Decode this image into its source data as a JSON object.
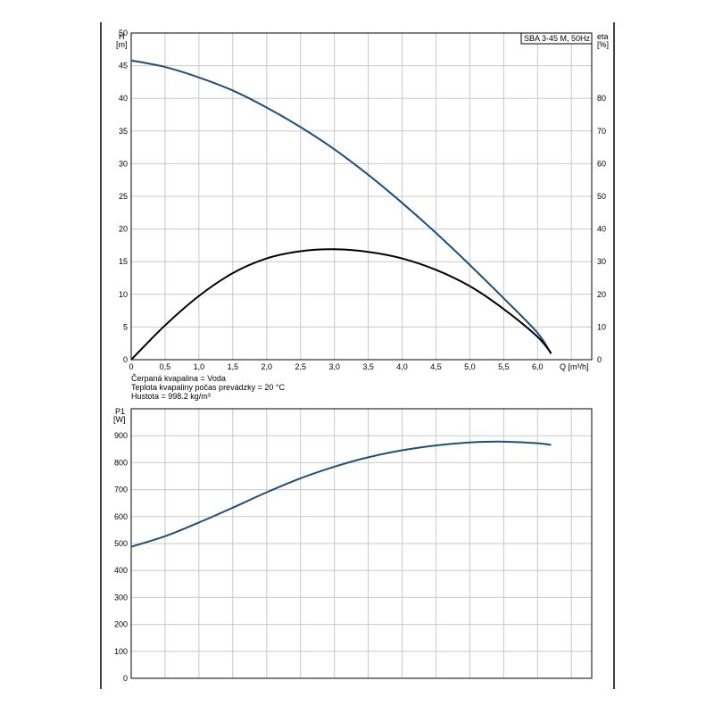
{
  "chart_data": [
    {
      "type": "line",
      "title": "SBA 3-45 M, 50Hz",
      "xlabel": "Q [m³/h]",
      "ylabel_left_name": "H",
      "ylabel_left_unit": "[m]",
      "ylabel_right_name": "eta",
      "ylabel_right_unit": "[%]",
      "xlim": [
        0,
        6.8
      ],
      "ylim": [
        0,
        50
      ],
      "ylim_right": [
        0,
        100
      ],
      "x_ticks": [
        "0",
        "0,5",
        "1,0",
        "1,5",
        "2,0",
        "2,5",
        "3,0",
        "3,5",
        "4,0",
        "4,5",
        "5,0",
        "5,5",
        "6,0"
      ],
      "y_ticks": [
        "0",
        "5",
        "10",
        "15",
        "20",
        "25",
        "30",
        "35",
        "40",
        "45",
        "50"
      ],
      "y_ticks_right": [
        "0",
        "10",
        "20",
        "30",
        "40",
        "50",
        "60",
        "70",
        "80"
      ],
      "grid": true,
      "series": [
        {
          "axis": "left",
          "color": "#1f4e79",
          "x": [
            0,
            0.5,
            1.0,
            1.5,
            2.0,
            2.5,
            3.0,
            3.5,
            4.0,
            4.5,
            5.0,
            5.5,
            6.0,
            6.2
          ],
          "y": [
            45.8,
            44.8,
            43.2,
            41.2,
            38.6,
            35.6,
            32.2,
            28.3,
            24.0,
            19.4,
            14.5,
            9.4,
            4.1,
            0.9
          ]
        },
        {
          "axis": "right",
          "color": "#000000",
          "x": [
            0,
            0.5,
            1.0,
            1.5,
            2.0,
            2.5,
            3.0,
            3.5,
            4.0,
            4.5,
            5.0,
            5.5,
            6.0,
            6.2
          ],
          "y": [
            0,
            10.5,
            19.5,
            26.5,
            31.0,
            33.2,
            33.8,
            33.0,
            31.0,
            27.5,
            22.5,
            15.5,
            7.0,
            2.0
          ]
        }
      ]
    },
    {
      "type": "line",
      "ylabel_name": "P1",
      "ylabel_unit": "[W]",
      "xlim": [
        0,
        6.8
      ],
      "ylim": [
        0,
        1000
      ],
      "y_ticks": [
        "0",
        "100",
        "200",
        "300",
        "400",
        "500",
        "600",
        "700",
        "800",
        "900"
      ],
      "grid": true,
      "series": [
        {
          "color": "#1f4e79",
          "x": [
            0,
            0.5,
            1.0,
            1.5,
            2.0,
            2.5,
            3.0,
            3.5,
            4.0,
            4.5,
            5.0,
            5.5,
            6.0,
            6.2
          ],
          "y": [
            488,
            527,
            578,
            633,
            690,
            742,
            785,
            820,
            846,
            864,
            875,
            878,
            872,
            866
          ]
        }
      ]
    }
  ],
  "info_lines": [
    "Čerpaná kvapalina = Voda",
    "Teplota kvapaliny počas prevádzky = 20 °C",
    "Hustota = 998.2 kg/m³"
  ]
}
